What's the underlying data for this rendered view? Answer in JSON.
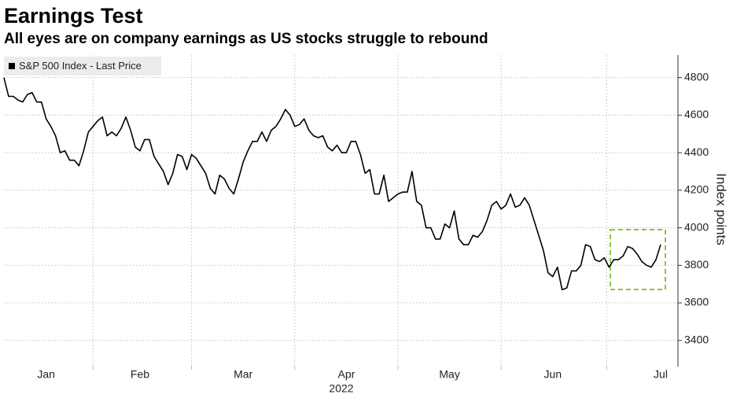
{
  "chart_data": {
    "type": "line",
    "title": "Earnings Test",
    "subtitle": "All eyes are on company earnings as US stocks struggle to rebound",
    "xlabel": "2022",
    "ylabel": "Index points",
    "legend": "top-left",
    "categories": [
      null,
      null,
      null,
      null,
      null,
      null,
      null,
      null,
      null,
      "Jan",
      null,
      null,
      null,
      null,
      null,
      null,
      null,
      null,
      null,
      null,
      null,
      null,
      null,
      null,
      null,
      null,
      null,
      null,
      null,
      "Feb",
      null,
      null,
      null,
      null,
      null,
      null,
      null,
      null,
      null,
      null,
      null,
      null,
      null,
      null,
      null,
      null,
      null,
      null,
      null,
      null,
      null,
      "Mar",
      null,
      null,
      null,
      null,
      null,
      null,
      null,
      null,
      null,
      null,
      null,
      null,
      null,
      null,
      null,
      null,
      null,
      null,
      null,
      null,
      null,
      "Apr",
      null,
      null,
      null,
      null,
      null,
      null,
      null,
      null,
      null,
      null,
      null,
      null,
      null,
      null,
      null,
      null,
      null,
      null,
      null,
      null,
      null,
      "May",
      null,
      null,
      null,
      null,
      null,
      null,
      null,
      null,
      null,
      null,
      null,
      null,
      null,
      null,
      null,
      null,
      null,
      null,
      null,
      null,
      null,
      "Jun",
      null,
      null,
      null,
      null,
      null,
      null,
      null,
      null,
      null,
      null,
      null,
      null,
      null,
      null,
      null,
      null,
      null,
      null,
      null,
      null,
      null,
      null,
      "Jul"
    ],
    "series": [
      {
        "name": "S&P 500 Index - Last Price",
        "color": "#000000",
        "values": [
          4800,
          4700,
          4700,
          4680,
          4670,
          4710,
          4720,
          4670,
          4670,
          4580,
          4540,
          4490,
          4400,
          4410,
          4360,
          4360,
          4330,
          4410,
          4510,
          4540,
          4570,
          4590,
          4490,
          4510,
          4490,
          4530,
          4590,
          4520,
          4430,
          4410,
          4470,
          4470,
          4380,
          4340,
          4300,
          4230,
          4290,
          4390,
          4380,
          4310,
          4390,
          4370,
          4330,
          4290,
          4210,
          4180,
          4280,
          4260,
          4210,
          4180,
          4260,
          4350,
          4410,
          4460,
          4460,
          4510,
          4460,
          4520,
          4540,
          4580,
          4630,
          4600,
          4540,
          4550,
          4580,
          4520,
          4490,
          4480,
          4490,
          4430,
          4410,
          4440,
          4400,
          4400,
          4460,
          4460,
          4390,
          4290,
          4310,
          4180,
          4180,
          4280,
          4140,
          4160,
          4180,
          4190,
          4190,
          4300,
          4140,
          4120,
          4000,
          4000,
          3940,
          3940,
          4020,
          4000,
          4090,
          3940,
          3910,
          3910,
          3960,
          3950,
          3980,
          4040,
          4120,
          4140,
          4100,
          4120,
          4180,
          4110,
          4120,
          4160,
          4120,
          4040,
          3960,
          3880,
          3760,
          3740,
          3790,
          3670,
          3680,
          3770,
          3770,
          3800,
          3910,
          3900,
          3830,
          3820,
          3840,
          3790,
          3830,
          3830,
          3850,
          3900,
          3890,
          3860,
          3820,
          3800,
          3790,
          3830,
          3910
        ]
      }
    ],
    "ylim": [
      3265,
      4920
    ],
    "yticks": [
      3400,
      3600,
      3800,
      4000,
      4200,
      4400,
      4600,
      4800
    ],
    "grid": true
  }
}
